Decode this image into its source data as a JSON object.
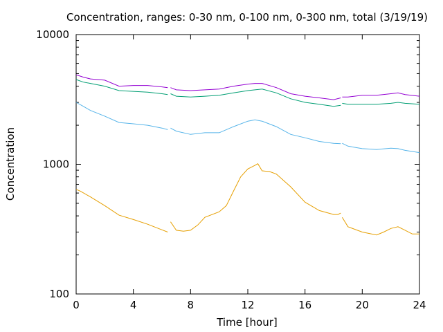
{
  "chart_data": {
    "type": "line",
    "title": "Concentration, ranges: 0-30 nm, 0-100 nm, 0-300 nm, total (3/19/19)",
    "xlabel": "Time [hour]",
    "ylabel": "Concentration",
    "xlim": [
      0,
      24
    ],
    "ylim": [
      100,
      10000
    ],
    "yscale": "log",
    "grid": false,
    "legend": "none",
    "x_ticks": [
      0,
      4,
      8,
      12,
      16,
      20,
      24
    ],
    "y_ticks": [
      100,
      1000,
      10000
    ],
    "y_minor_ticks": [
      200,
      300,
      400,
      500,
      600,
      700,
      800,
      900,
      2000,
      3000,
      4000,
      5000,
      6000,
      7000,
      8000,
      9000
    ],
    "series": [
      {
        "color": "#e69f00",
        "segments": [
          [
            [
              0,
              640
            ],
            [
              0.3,
              620
            ],
            [
              1,
              560
            ],
            [
              2,
              480
            ],
            [
              3,
              405
            ],
            [
              4,
              375
            ],
            [
              5,
              345
            ],
            [
              6,
              312
            ],
            [
              6.4,
              300
            ]
          ],
          [
            [
              6.6,
              360
            ],
            [
              7,
              310
            ],
            [
              7.5,
              305
            ],
            [
              8,
              310
            ],
            [
              8.5,
              340
            ],
            [
              9,
              390
            ],
            [
              10,
              430
            ],
            [
              10.5,
              480
            ],
            [
              11,
              620
            ],
            [
              11.5,
              800
            ],
            [
              12,
              920
            ],
            [
              12.5,
              980
            ],
            [
              12.7,
              1010
            ],
            [
              13,
              890
            ],
            [
              13.5,
              880
            ],
            [
              14,
              840
            ],
            [
              15,
              670
            ],
            [
              16,
              510
            ],
            [
              17,
              440
            ],
            [
              18,
              410
            ],
            [
              18.3,
              410
            ],
            [
              18.5,
              420
            ]
          ],
          [
            [
              18.6,
              390
            ],
            [
              19,
              330
            ],
            [
              20,
              300
            ],
            [
              21,
              285
            ],
            [
              21.5,
              300
            ],
            [
              22,
              320
            ],
            [
              22.5,
              330
            ],
            [
              23,
              310
            ],
            [
              23.5,
              290
            ],
            [
              24,
              290
            ]
          ]
        ]
      },
      {
        "color": "#56b4e9",
        "segments": [
          [
            [
              0,
              3000
            ],
            [
              0.5,
              2800
            ],
            [
              1,
              2600
            ],
            [
              2,
              2350
            ],
            [
              3,
              2100
            ],
            [
              4,
              2050
            ],
            [
              5,
              2000
            ],
            [
              6,
              1900
            ],
            [
              6.4,
              1850
            ]
          ],
          [
            [
              6.6,
              1900
            ],
            [
              7,
              1800
            ],
            [
              8,
              1700
            ],
            [
              9,
              1750
            ],
            [
              10,
              1750
            ],
            [
              11,
              1950
            ],
            [
              12,
              2150
            ],
            [
              12.5,
              2200
            ],
            [
              13,
              2150
            ],
            [
              14,
              1950
            ],
            [
              15,
              1700
            ],
            [
              16,
              1600
            ],
            [
              17,
              1500
            ],
            [
              18,
              1450
            ],
            [
              18.5,
              1440
            ]
          ],
          [
            [
              18.6,
              1450
            ],
            [
              19,
              1380
            ],
            [
              20,
              1320
            ],
            [
              21,
              1300
            ],
            [
              22,
              1330
            ],
            [
              22.5,
              1320
            ],
            [
              23,
              1280
            ],
            [
              24,
              1230
            ]
          ]
        ]
      },
      {
        "color": "#009e73",
        "segments": [
          [
            [
              0,
              4500
            ],
            [
              0.5,
              4300
            ],
            [
              1,
              4200
            ],
            [
              2,
              4000
            ],
            [
              3,
              3700
            ],
            [
              4,
              3650
            ],
            [
              5,
              3600
            ],
            [
              6,
              3500
            ],
            [
              6.4,
              3450
            ]
          ],
          [
            [
              6.6,
              3500
            ],
            [
              7,
              3350
            ],
            [
              8,
              3300
            ],
            [
              9,
              3350
            ],
            [
              10,
              3400
            ],
            [
              11,
              3550
            ],
            [
              12,
              3700
            ],
            [
              12.5,
              3750
            ],
            [
              13,
              3800
            ],
            [
              14,
              3550
            ],
            [
              15,
              3200
            ],
            [
              16,
              3000
            ],
            [
              17,
              2900
            ],
            [
              18,
              2800
            ],
            [
              18.5,
              2850
            ]
          ],
          [
            [
              18.6,
              2950
            ],
            [
              19,
              2900
            ],
            [
              20,
              2900
            ],
            [
              21,
              2900
            ],
            [
              22,
              2950
            ],
            [
              22.5,
              3000
            ],
            [
              23,
              2950
            ],
            [
              24,
              2900
            ]
          ]
        ]
      },
      {
        "color": "#9400d3",
        "segments": [
          [
            [
              0,
              4900
            ],
            [
              0.5,
              4700
            ],
            [
              1,
              4550
            ],
            [
              2,
              4450
            ],
            [
              3,
              4000
            ],
            [
              4,
              4050
            ],
            [
              5,
              4050
            ],
            [
              6,
              3950
            ],
            [
              6.4,
              3900
            ]
          ],
          [
            [
              6.6,
              3900
            ],
            [
              7,
              3750
            ],
            [
              8,
              3700
            ],
            [
              9,
              3750
            ],
            [
              10,
              3800
            ],
            [
              11,
              4000
            ],
            [
              12,
              4150
            ],
            [
              12.5,
              4200
            ],
            [
              13,
              4200
            ],
            [
              14,
              3900
            ],
            [
              15,
              3500
            ],
            [
              16,
              3350
            ],
            [
              17,
              3250
            ],
            [
              18,
              3150
            ],
            [
              18.5,
              3250
            ]
          ],
          [
            [
              18.6,
              3300
            ],
            [
              19,
              3300
            ],
            [
              20,
              3400
            ],
            [
              21,
              3400
            ],
            [
              22,
              3500
            ],
            [
              22.5,
              3550
            ],
            [
              23,
              3450
            ],
            [
              24,
              3350
            ]
          ]
        ]
      }
    ]
  }
}
